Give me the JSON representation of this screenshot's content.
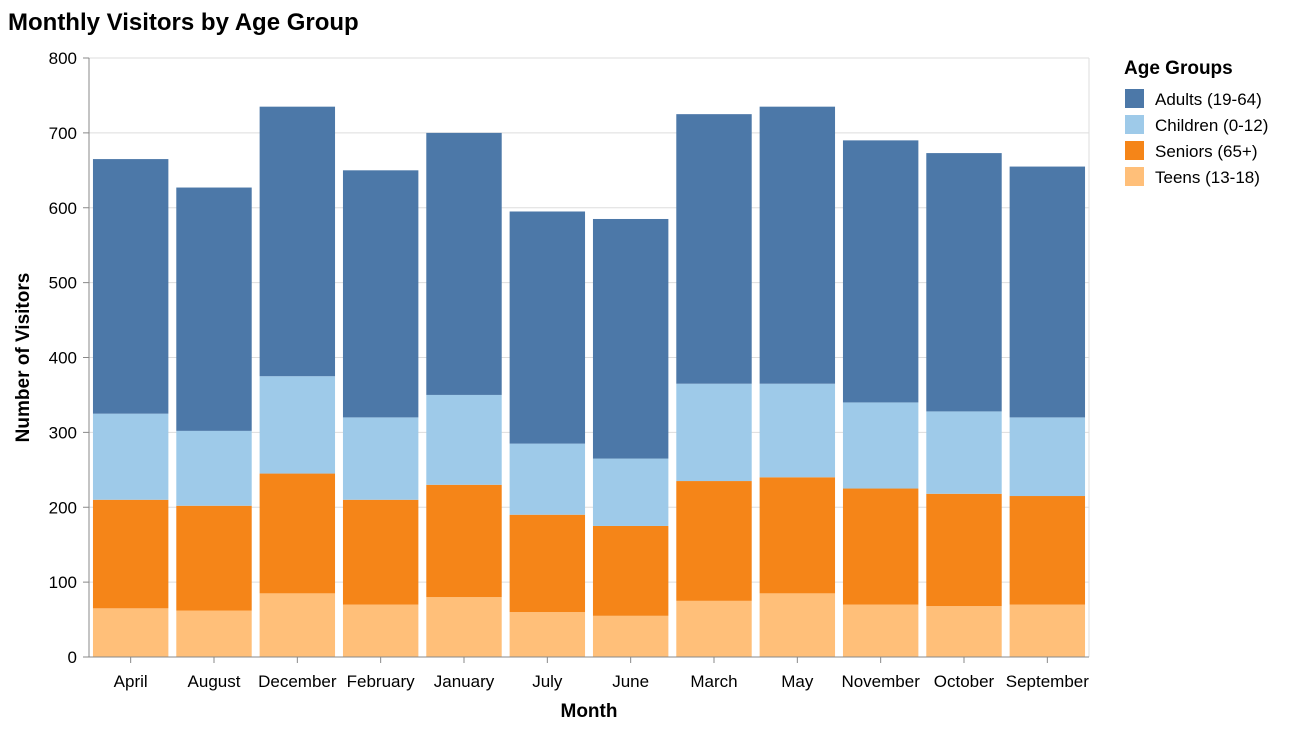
{
  "chart_data": {
    "type": "bar",
    "stacked": true,
    "title": "Monthly Visitors by Age Group",
    "xlabel": "Month",
    "ylabel": "Number of Visitors",
    "ylim": [
      0,
      800
    ],
    "yticks": [
      0,
      100,
      200,
      300,
      400,
      500,
      600,
      700,
      800
    ],
    "grid": true,
    "legend": {
      "title": "Age Groups",
      "placement": "right"
    },
    "categories": [
      "April",
      "August",
      "December",
      "February",
      "January",
      "July",
      "June",
      "March",
      "May",
      "November",
      "October",
      "September"
    ],
    "series": [
      {
        "name": "Teens (13-18)",
        "color": "#ffbf79",
        "values": [
          65,
          62,
          85,
          70,
          80,
          60,
          55,
          75,
          85,
          70,
          68,
          70
        ]
      },
      {
        "name": "Seniors (65+)",
        "color": "#f58518",
        "values": [
          145,
          140,
          160,
          140,
          150,
          130,
          120,
          160,
          155,
          155,
          150,
          145
        ]
      },
      {
        "name": "Children (0-12)",
        "color": "#9ecae9",
        "values": [
          115,
          100,
          130,
          110,
          120,
          95,
          90,
          130,
          125,
          115,
          110,
          105
        ]
      },
      {
        "name": "Adults (19-64)",
        "color": "#4c78a8",
        "values": [
          340,
          325,
          360,
          330,
          350,
          310,
          320,
          360,
          370,
          350,
          345,
          335
        ]
      }
    ],
    "legend_order": [
      "Adults (19-64)",
      "Children (0-12)",
      "Seniors (65+)",
      "Teens (13-18)"
    ]
  }
}
